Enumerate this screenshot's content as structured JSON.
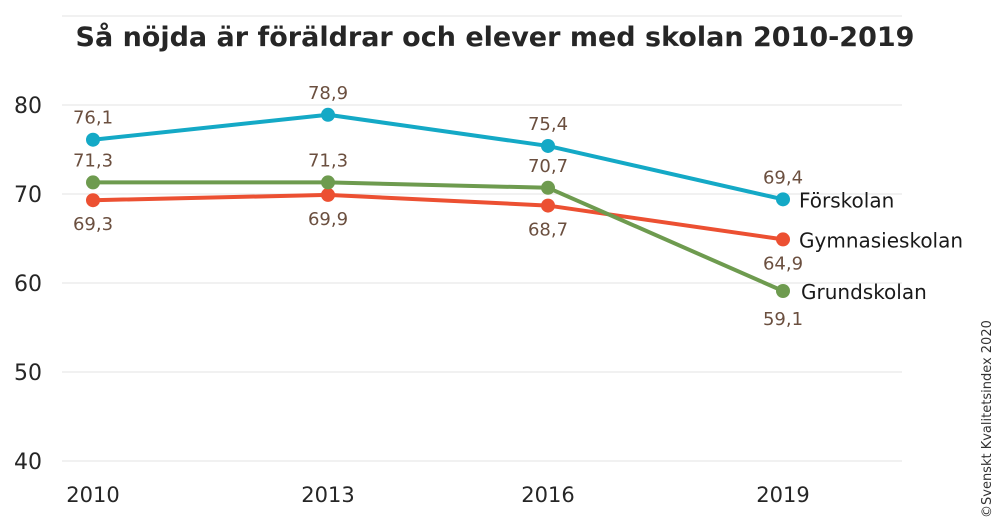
{
  "chart_data": {
    "type": "line",
    "title": "Så nöjda är föräldrar och elever med skolan 2010-2019",
    "categories": [
      "2010",
      "2013",
      "2016",
      "2019"
    ],
    "ylim": [
      40,
      80
    ],
    "yticks": [
      "40",
      "50",
      "60",
      "70",
      "80"
    ],
    "grid": true,
    "series": [
      {
        "name": "Förskolan",
        "color": "#14a9c6",
        "values": [
          76.1,
          78.9,
          75.4,
          69.4
        ],
        "labels": [
          "76,1",
          "78,9",
          "75,4",
          "69,4"
        ]
      },
      {
        "name": "Gymnasieskolan",
        "color": "#ec5032",
        "values": [
          69.3,
          69.9,
          68.7,
          64.9
        ],
        "labels": [
          "69,3",
          "69,9",
          "68,7",
          "64,9"
        ]
      },
      {
        "name": "Grundskolan",
        "color": "#6e9b4f",
        "values": [
          71.3,
          71.3,
          70.7,
          59.1
        ],
        "labels": [
          "71,3",
          "71,3",
          "70,7",
          "59,1"
        ]
      }
    ],
    "credit": "©Svenskt Kvalitetsindex 2020"
  }
}
